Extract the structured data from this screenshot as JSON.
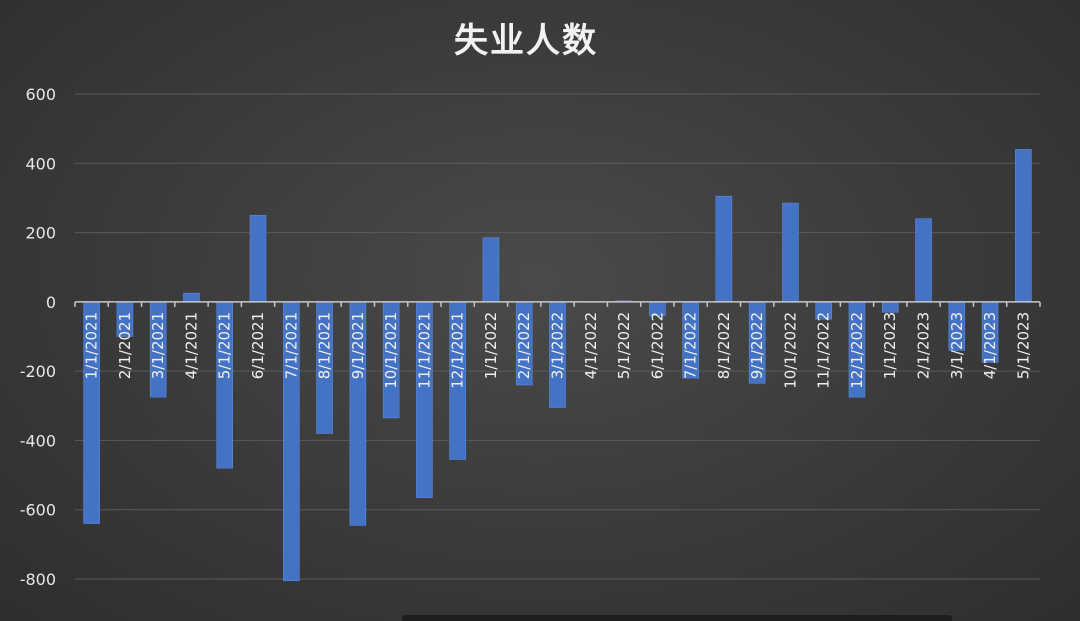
{
  "chart_data": {
    "type": "bar",
    "title": "失业人数",
    "xlabel": "",
    "ylabel": "",
    "ylim": [
      -800,
      600
    ],
    "yticks": [
      600,
      400,
      200,
      0,
      -200,
      -400,
      -600,
      -800
    ],
    "grid": true,
    "legend": "none",
    "colors": {
      "bar": "#4472c4",
      "background": "#3a3a3a",
      "text": "#e6e6e6"
    },
    "categories": [
      "1/1/2021",
      "2/1/2021",
      "3/1/2021",
      "4/1/2021",
      "5/1/2021",
      "6/1/2021",
      "7/1/2021",
      "8/1/2021",
      "9/1/2021",
      "10/1/2021",
      "11/1/2021",
      "12/1/2021",
      "1/1/2022",
      "2/1/2022",
      "3/1/2022",
      "4/1/2022",
      "5/1/2022",
      "6/1/2022",
      "7/1/2022",
      "8/1/2022",
      "9/1/2022",
      "10/1/2022",
      "11/1/2022",
      "12/1/2022",
      "1/1/2023",
      "2/1/2023",
      "3/1/2023",
      "4/1/2023",
      "5/1/2023"
    ],
    "values": [
      -640,
      -100,
      -275,
      25,
      -480,
      250,
      -805,
      -380,
      -645,
      -335,
      -565,
      -455,
      185,
      -240,
      -305,
      0,
      3,
      -40,
      -220,
      305,
      -235,
      285,
      -50,
      -275,
      -30,
      240,
      -140,
      -175,
      440
    ]
  }
}
